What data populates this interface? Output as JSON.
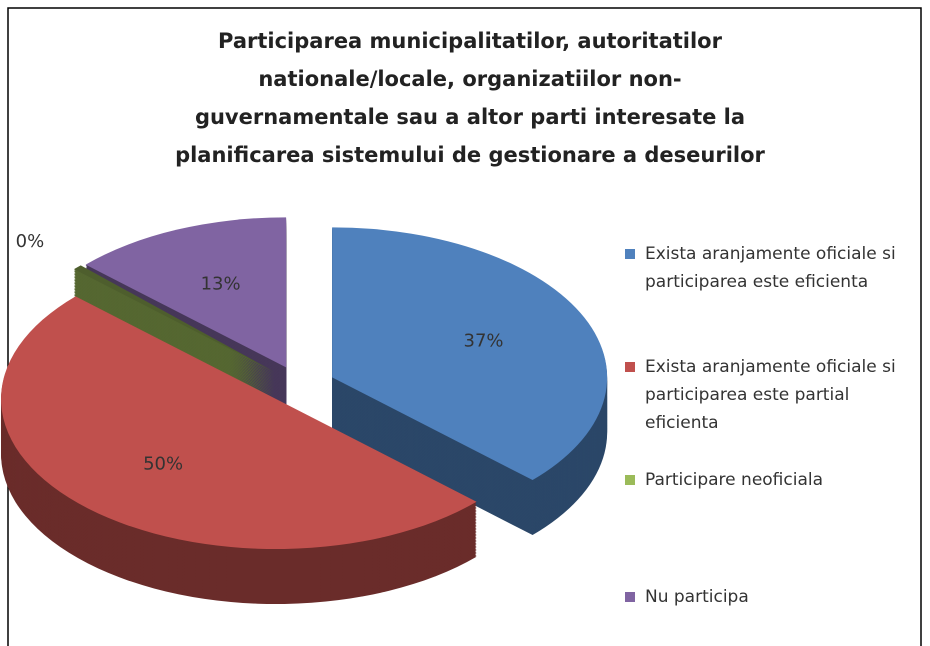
{
  "chart_data": {
    "type": "pie",
    "title": "Participarea municipalitatilor,  autoritatilor nationale/locale, organizatiilor non-guvernamentale sau a altor parti interesate la planificarea sistemului de gestionare a deseurilor",
    "categories": [
      "Exista aranjamente oficiale si participarea  este eficienta",
      "Exista aranjamente oficiale si participarea  este partial eficienta",
      "Participare neoficiala",
      "Nu participa"
    ],
    "values": [
      37,
      50,
      0,
      13
    ],
    "value_labels": [
      "37%",
      "50%",
      "0%",
      "13%"
    ],
    "colors": [
      "#4f81bd",
      "#c0504d",
      "#9bbb59",
      "#8064a2"
    ],
    "legend": "right"
  }
}
